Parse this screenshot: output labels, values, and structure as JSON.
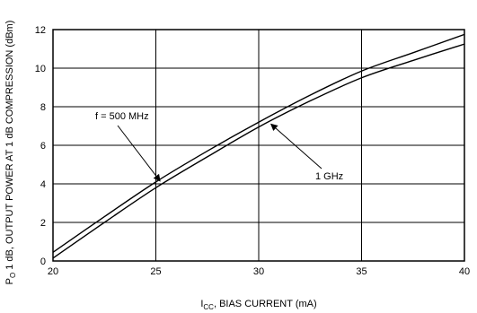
{
  "chart_data": {
    "type": "line",
    "xlabel_main": "I",
    "xlabel_sub": "CC",
    "xlabel_rest": ", BIAS CURRENT (mA)",
    "ylabel_main": "P",
    "ylabel_sub": "O",
    "ylabel_rest": " 1 dB, OUTPUT POWER AT 1 dB COMPRESSION (dBm)",
    "xlim": [
      20,
      40
    ],
    "ylim": [
      0,
      12
    ],
    "x_ticks": [
      "20",
      "25",
      "30",
      "35",
      "40"
    ],
    "y_ticks": [
      "0",
      "2",
      "4",
      "6",
      "8",
      "10",
      "12"
    ],
    "grid": true,
    "series": [
      {
        "name": "f = 500 MHz",
        "x": [
          20,
          22.5,
          25,
          27.5,
          30,
          32.5,
          35,
          37.5,
          40
        ],
        "y": [
          0.45,
          2.3,
          4.1,
          5.7,
          7.2,
          8.6,
          9.85,
          10.8,
          11.75
        ]
      },
      {
        "name": "1 GHz",
        "x": [
          20,
          22.5,
          25,
          27.5,
          30,
          32.5,
          35,
          37.5,
          40
        ],
        "y": [
          0.15,
          2.0,
          3.8,
          5.4,
          6.95,
          8.3,
          9.5,
          10.4,
          11.25
        ]
      }
    ],
    "annotations": [
      {
        "text": "f = 500 MHz",
        "series": 0
      },
      {
        "text": "1 GHz",
        "series": 1
      }
    ]
  }
}
